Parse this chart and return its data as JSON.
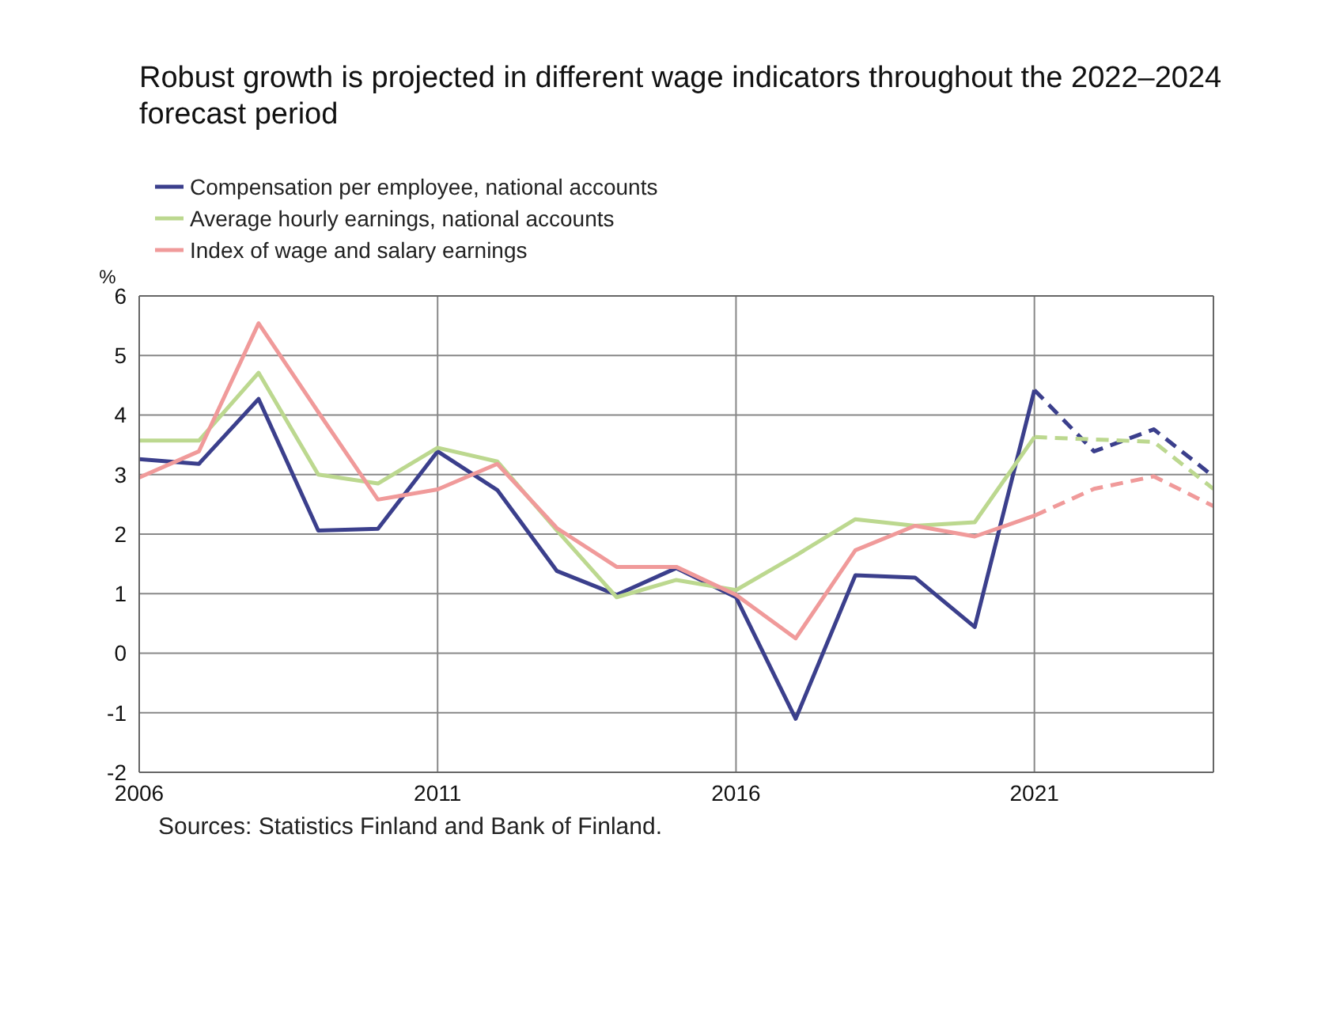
{
  "chart_data": {
    "type": "line",
    "title": "Robust growth is projected in different wage indicators throughout the 2022–2024 forecast period",
    "ylabel": "%",
    "x": [
      2006,
      2007,
      2008,
      2009,
      2010,
      2011,
      2012,
      2013,
      2014,
      2015,
      2016,
      2017,
      2018,
      2019,
      2020,
      2021
    ],
    "series": [
      {
        "name": "Compensation per employee, national accounts",
        "color": "#3b3f8c",
        "values": [
          3.26,
          3.18,
          4.27,
          2.06,
          2.09,
          3.39,
          2.74,
          1.38,
          0.98,
          1.43,
          0.94,
          -1.1,
          1.31,
          1.27,
          0.44,
          4.42
        ]
      },
      {
        "name": "Average hourly earnings, national accounts",
        "color": "#bcd88f",
        "values": [
          3.57,
          3.57,
          4.71,
          3.0,
          2.85,
          3.45,
          3.22,
          2.06,
          0.94,
          1.23,
          1.06,
          1.64,
          2.25,
          2.14,
          2.2,
          3.63
        ]
      },
      {
        "name": "Index of wage and salary earnings",
        "color": "#f09a9a",
        "values": [
          2.95,
          3.39,
          5.54,
          4.05,
          2.58,
          2.75,
          3.18,
          2.1,
          1.45,
          1.45,
          0.98,
          0.25,
          1.73,
          2.14,
          1.96,
          2.31
        ]
      },
      {
        "color": "#3b3f8c",
        "line_style": "dashed",
        "x": [
          2021,
          2022,
          2023,
          2024
        ],
        "values": [
          4.42,
          3.39,
          3.76,
          2.97
        ]
      },
      {
        "color": "#bcd88f",
        "line_style": "dashed",
        "x": [
          2021,
          2022,
          2023,
          2024
        ],
        "values": [
          3.63,
          3.59,
          3.55,
          2.76
        ]
      },
      {
        "color": "#f09a9a",
        "line_style": "dashed",
        "x": [
          2021,
          2022,
          2023,
          2024
        ],
        "values": [
          2.31,
          2.76,
          2.97,
          2.47
        ]
      }
    ],
    "xlim": [
      2006,
      2024
    ],
    "xticks": [
      2006,
      2011,
      2016,
      2021
    ],
    "ylim": [
      -2,
      6
    ],
    "yticks": [
      -2,
      -1,
      0,
      1,
      2,
      3,
      4,
      5,
      6
    ],
    "grid": true,
    "legend": "top left",
    "marker": "none",
    "line_style": "solid",
    "annotations": [
      "Sources: Statistics Finland and Bank of Finland."
    ]
  }
}
